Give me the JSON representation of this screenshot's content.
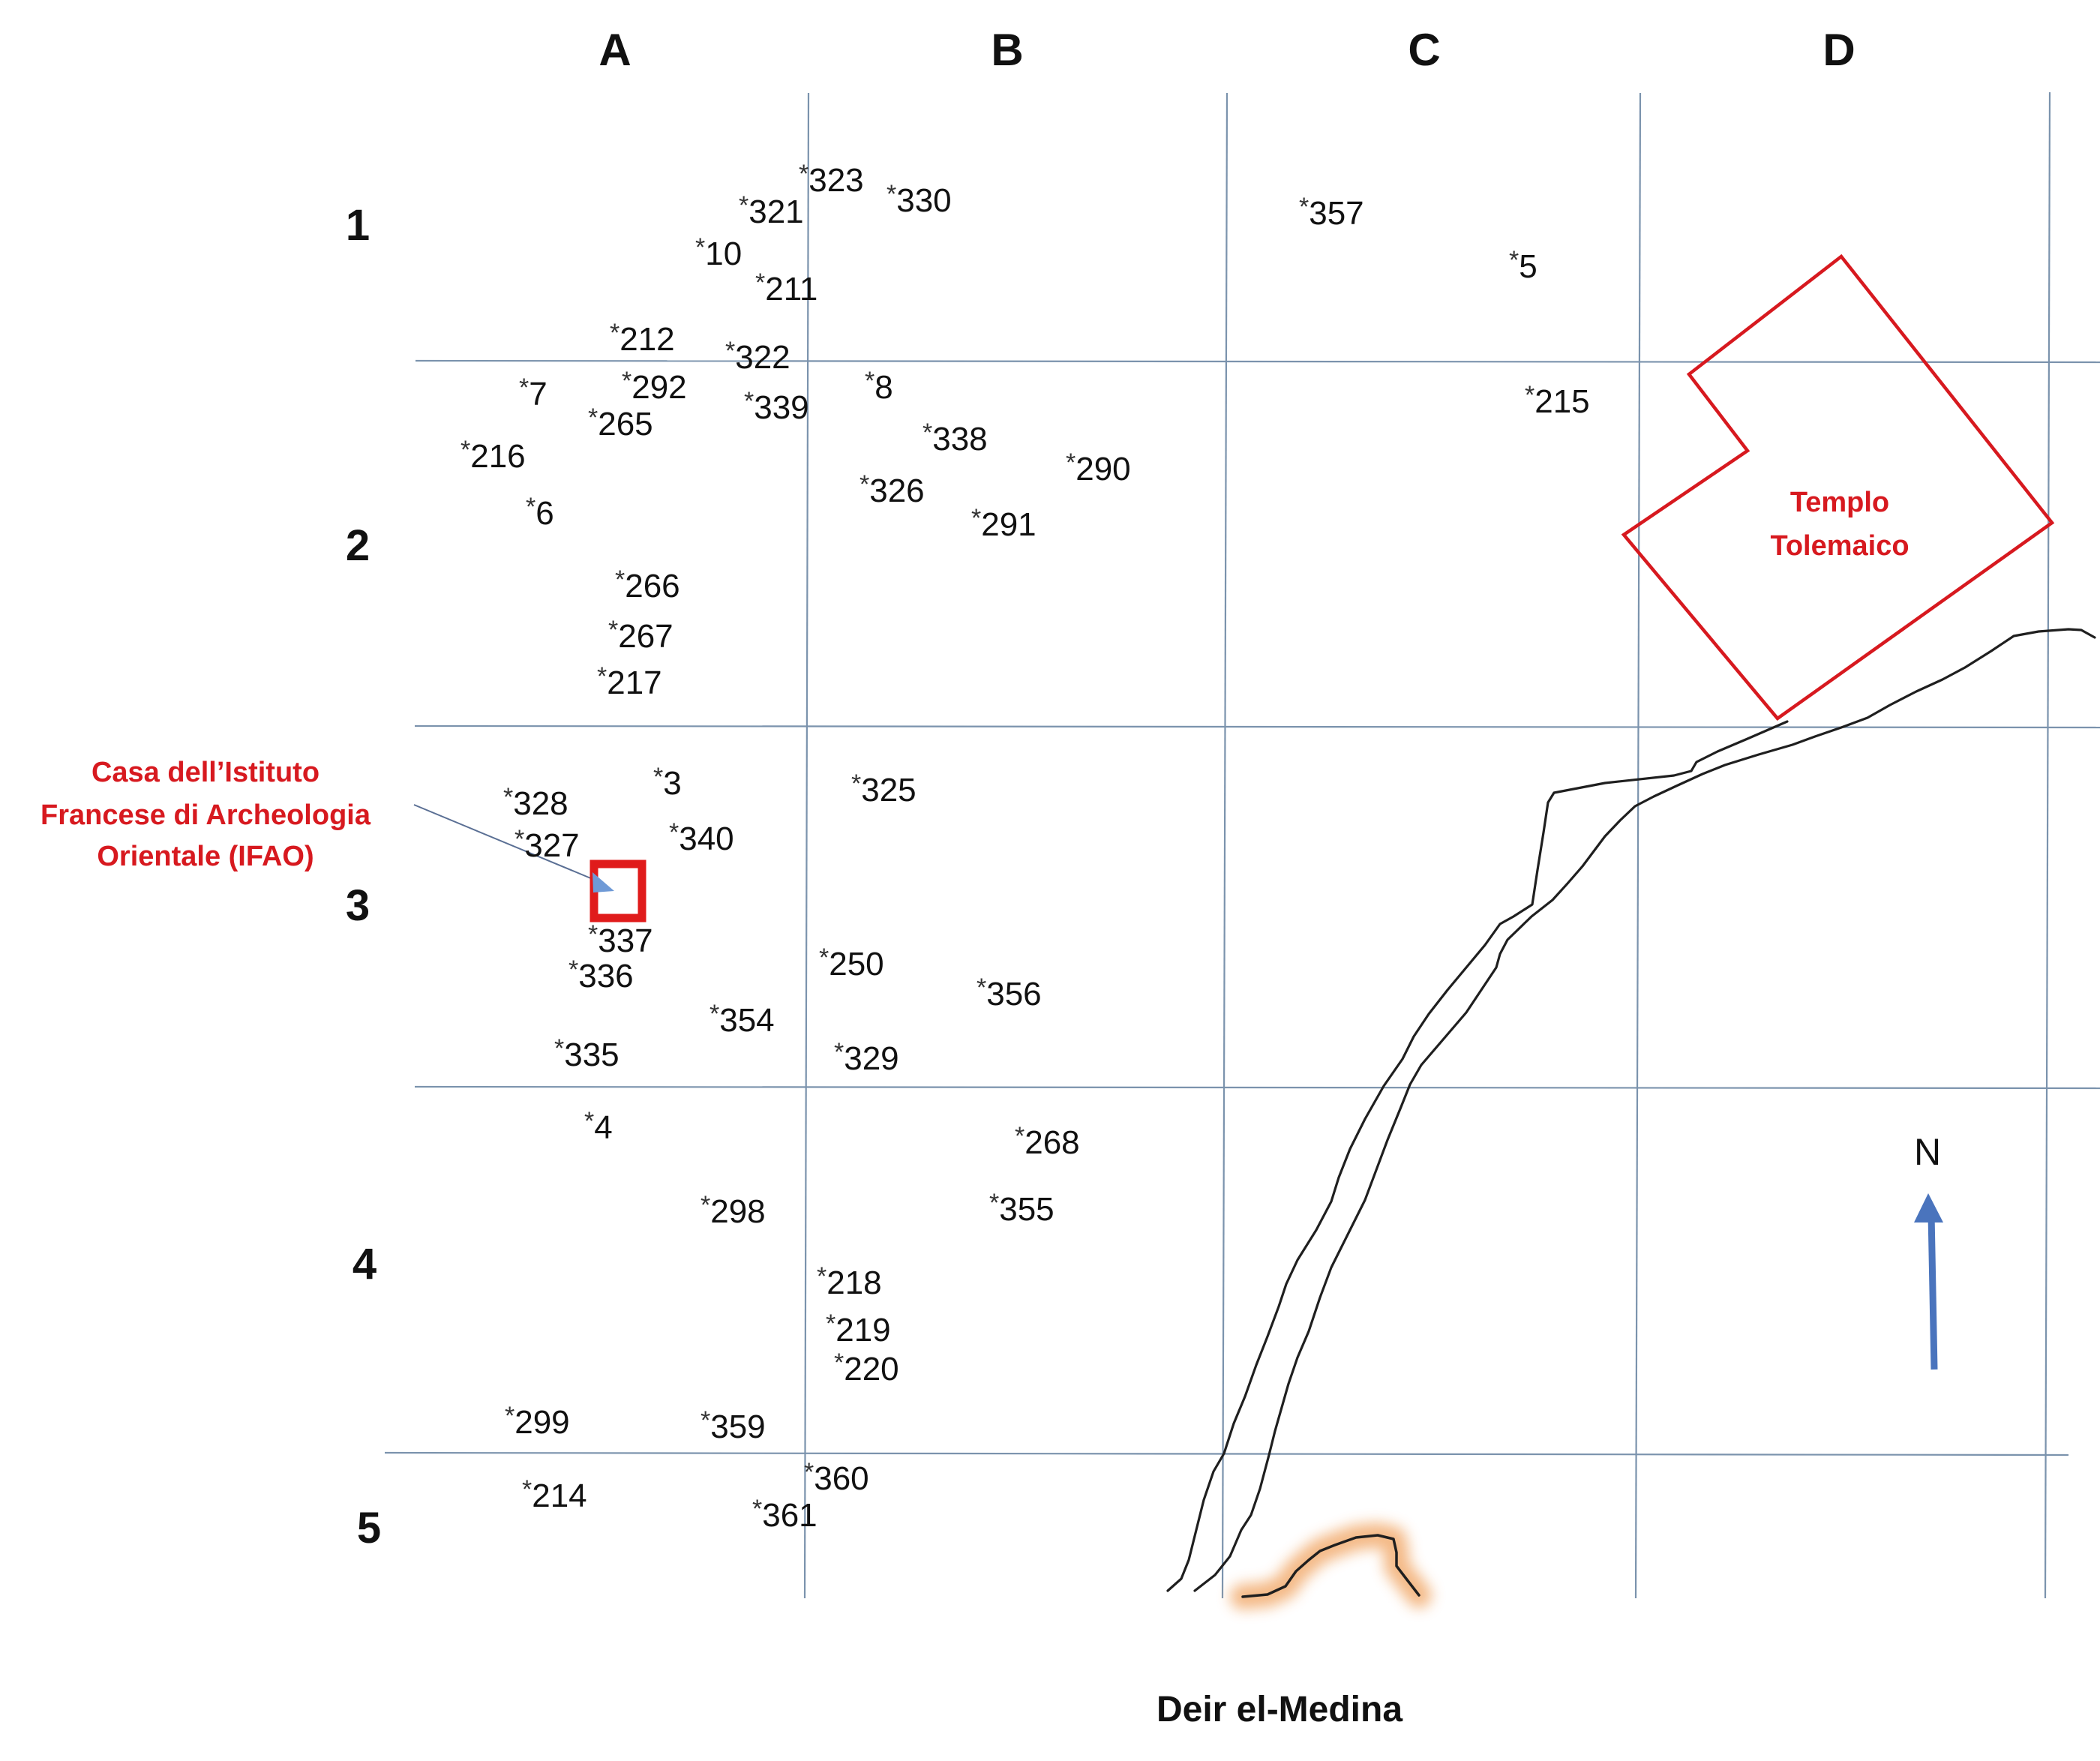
{
  "map": {
    "columns": [
      "A",
      "B",
      "C",
      "D"
    ],
    "rows": [
      "1",
      "2",
      "3",
      "4",
      "5"
    ],
    "tombs": [
      "323",
      "330",
      "321",
      "10",
      "211",
      "212",
      "322",
      "7",
      "292",
      "339",
      "8",
      "265",
      "338",
      "216",
      "290",
      "326",
      "6",
      "291",
      "266",
      "267",
      "217",
      "357",
      "5",
      "215",
      "3",
      "325",
      "328",
      "340",
      "327",
      "337",
      "336",
      "250",
      "356",
      "354",
      "335",
      "329",
      "4",
      "268",
      "298",
      "355",
      "218",
      "219",
      "220",
      "299",
      "359",
      "360",
      "214",
      "361"
    ],
    "tomb_prefix": "*",
    "ifao_label": [
      "Casa dell’Istituto",
      "Francese di Archeologia",
      "Orientale (IFAO)"
    ],
    "temple_label": [
      "Templo",
      "Tolemaico"
    ],
    "north_label": "N",
    "site_label": "Deir el-Medina",
    "colors": {
      "grid": "#7b93ad",
      "highlight_red": "#d7191f",
      "north_arrow": "#4a74bd",
      "ridge_glow": "#f3b27a",
      "road": "#1f1f1f"
    }
  }
}
